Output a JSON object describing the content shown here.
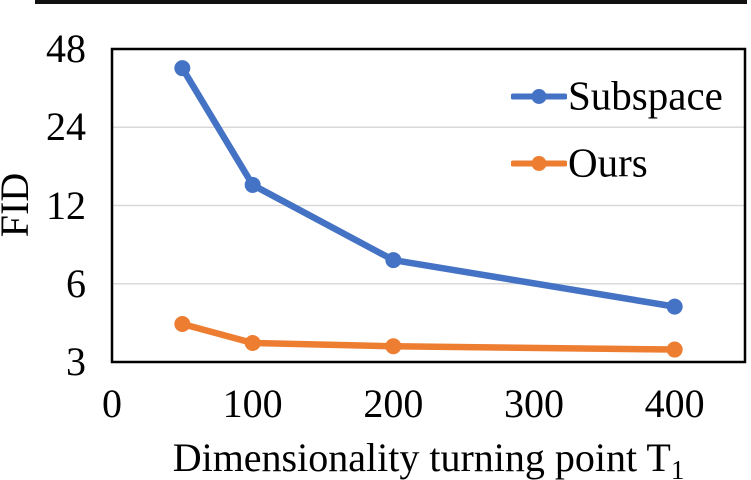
{
  "figure": {
    "has_top_rule": true,
    "background": "#ffffff",
    "text_color": "#000000",
    "rule_color": "#111111"
  },
  "chart_data": {
    "type": "line",
    "title": "",
    "xlabel_main": "Dimensionality turning point T",
    "xlabel_sub": "1",
    "ylabel": "FID",
    "x": [
      50,
      100,
      200,
      400
    ],
    "series": [
      {
        "name": "Subspace",
        "color": "#4472C4",
        "values": [
          40.5,
          14.4,
          7.4,
          4.9
        ]
      },
      {
        "name": "Ours",
        "color": "#ED7D31",
        "values": [
          4.2,
          3.55,
          3.45,
          3.35
        ]
      }
    ],
    "x_ticks": [
      0,
      100,
      200,
      300,
      400
    ],
    "y_ticks": [
      3,
      6,
      12,
      24,
      48
    ],
    "y_scale": "log2",
    "xlim": [
      0,
      450
    ],
    "ylim": [
      3,
      48
    ],
    "grid": "horizontal",
    "gridline_color": "#D9D9D9",
    "axis_border_color": "#000000",
    "legend_position": "upper-right",
    "legend_entries": [
      "Subspace",
      "Ours"
    ]
  }
}
